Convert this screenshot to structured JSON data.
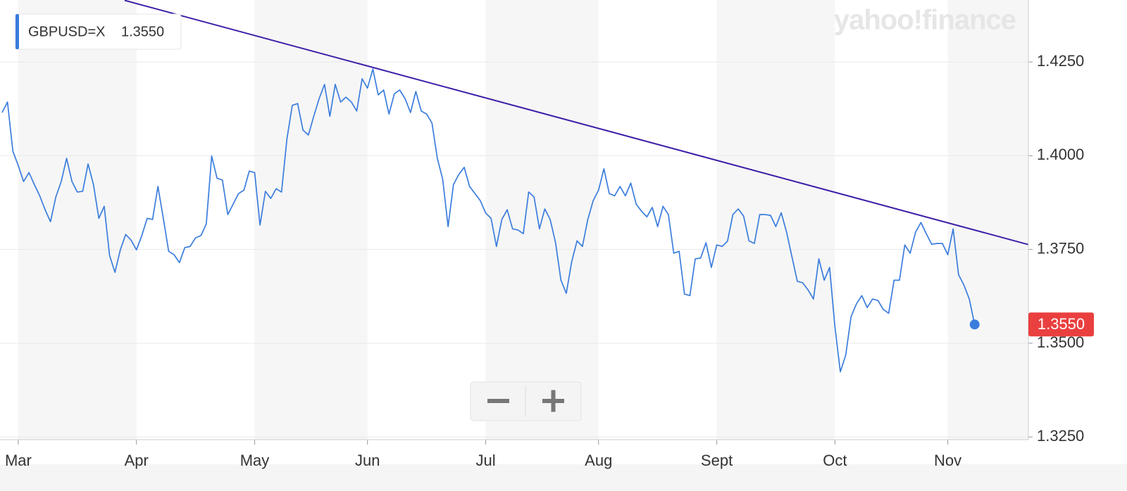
{
  "chart_data": {
    "type": "line",
    "watermark": "yahoo!finance",
    "last_price": {
      "value": 1.355,
      "label": "1.3550"
    },
    "categories": [
      null,
      null,
      null,
      "Mar",
      null,
      null,
      null,
      null,
      null,
      null,
      null,
      null,
      null,
      null,
      null,
      null,
      null,
      null,
      null,
      null,
      null,
      null,
      null,
      null,
      null,
      "Apr",
      null,
      null,
      null,
      null,
      null,
      null,
      null,
      null,
      null,
      null,
      null,
      null,
      null,
      null,
      null,
      null,
      null,
      null,
      null,
      null,
      null,
      "May",
      null,
      null,
      null,
      null,
      null,
      null,
      null,
      null,
      null,
      null,
      null,
      null,
      null,
      null,
      null,
      null,
      null,
      null,
      null,
      null,
      "Jun",
      null,
      null,
      null,
      null,
      null,
      null,
      null,
      null,
      null,
      null,
      null,
      null,
      null,
      null,
      null,
      null,
      null,
      null,
      null,
      null,
      null,
      "Jul",
      null,
      null,
      null,
      null,
      null,
      null,
      null,
      null,
      null,
      null,
      null,
      null,
      null,
      null,
      null,
      null,
      null,
      null,
      null,
      null,
      "Aug",
      null,
      null,
      null,
      null,
      null,
      null,
      null,
      null,
      null,
      null,
      null,
      null,
      null,
      null,
      null,
      null,
      null,
      null,
      null,
      null,
      null,
      "Sept",
      null,
      null,
      null,
      null,
      null,
      null,
      null,
      null,
      null,
      null,
      null,
      null,
      null,
      null,
      null,
      null,
      null,
      null,
      null,
      null,
      null,
      "Oct",
      null,
      null,
      null,
      null,
      null,
      null,
      null,
      null,
      null,
      null,
      null,
      null,
      null,
      null,
      null,
      null,
      null,
      null,
      null,
      null,
      "Nov",
      null,
      null,
      null,
      null,
      null,
      null,
      null,
      null,
      null,
      null,
      null,
      null,
      null,
      null,
      null
    ],
    "series": [
      {
        "name": "GBPUSD=X",
        "color": "#3b7ddd",
        "values": [
          1.4115,
          1.4143,
          1.4012,
          1.3974,
          1.3931,
          1.3955,
          1.3923,
          1.3893,
          1.3856,
          1.3824,
          1.389,
          1.3931,
          1.3993,
          1.3931,
          1.3903,
          1.3905,
          1.3978,
          1.3923,
          1.3833,
          1.3865,
          1.3734,
          1.3689,
          1.3749,
          1.379,
          1.3775,
          1.3749,
          1.3787,
          1.3833,
          1.383,
          1.3918,
          1.3833,
          1.3745,
          1.3736,
          1.3715,
          1.3755,
          1.3758,
          1.3781,
          1.3787,
          1.3818,
          1.3999,
          1.394,
          1.3935,
          1.3843,
          1.3871,
          1.3899,
          1.3908,
          1.3959,
          1.3955,
          1.3815,
          1.3905,
          1.3886,
          1.3912,
          1.3903,
          1.4044,
          1.4134,
          1.4139,
          1.4068,
          1.4055,
          1.4105,
          1.4152,
          1.419,
          1.4105,
          1.419,
          1.4143,
          1.4156,
          1.4143,
          1.4119,
          1.4205,
          1.418,
          1.4231,
          1.4162,
          1.4175,
          1.4111,
          1.4165,
          1.4175,
          1.4152,
          1.4115,
          1.4171,
          1.4119,
          1.4111,
          1.4087,
          1.3993,
          1.3937,
          1.3811,
          1.3923,
          1.395,
          1.3969,
          1.3918,
          1.3899,
          1.388,
          1.3847,
          1.3833,
          1.3758,
          1.383,
          1.3856,
          1.3805,
          1.3802,
          1.3792,
          1.3903,
          1.389,
          1.3805,
          1.3858,
          1.383,
          1.3768,
          1.3668,
          1.3633,
          1.3717,
          1.3773,
          1.3758,
          1.383,
          1.388,
          1.3908,
          1.3965,
          1.3899,
          1.3893,
          1.3918,
          1.3893,
          1.3927,
          1.3871,
          1.3852,
          1.3837,
          1.3862,
          1.3811,
          1.3865,
          1.3843,
          1.374,
          1.3745,
          1.3631,
          1.3627,
          1.3725,
          1.3727,
          1.3768,
          1.3702,
          1.3762,
          1.3758,
          1.3772,
          1.3843,
          1.3858,
          1.3839,
          1.3773,
          1.3766,
          1.3843,
          1.3843,
          1.3841,
          1.3811,
          1.3848,
          1.3796,
          1.373,
          1.3665,
          1.3661,
          1.3642,
          1.3618,
          1.3725,
          1.3668,
          1.3702,
          1.3543,
          1.3424,
          1.3468,
          1.3571,
          1.3605,
          1.3627,
          1.3595,
          1.3618,
          1.3614,
          1.359,
          1.358,
          1.3668,
          1.3668,
          1.3762,
          1.374,
          1.3796,
          1.3822,
          1.3792,
          1.3764,
          1.3766,
          1.3766,
          1.3736,
          1.3805,
          1.3683,
          1.3655,
          1.3618,
          1.355,
          null,
          null,
          null,
          null,
          null,
          null,
          null,
          null,
          null,
          null
        ]
      }
    ],
    "trendline": {
      "color": "#3d1fa8",
      "start": 1.4414,
      "end": 1.3763
    },
    "ylim": [
      1.3243,
      1.4415
    ],
    "yticks": [
      {
        "value": 1.325,
        "label": "1.3250"
      },
      {
        "value": 1.35,
        "label": "1.3500"
      },
      {
        "value": 1.375,
        "label": "1.3750"
      },
      {
        "value": 1.4,
        "label": "1.4000"
      },
      {
        "value": 1.425,
        "label": "1.4250"
      }
    ],
    "grid": true,
    "last_price_color": "#e9403f"
  }
}
